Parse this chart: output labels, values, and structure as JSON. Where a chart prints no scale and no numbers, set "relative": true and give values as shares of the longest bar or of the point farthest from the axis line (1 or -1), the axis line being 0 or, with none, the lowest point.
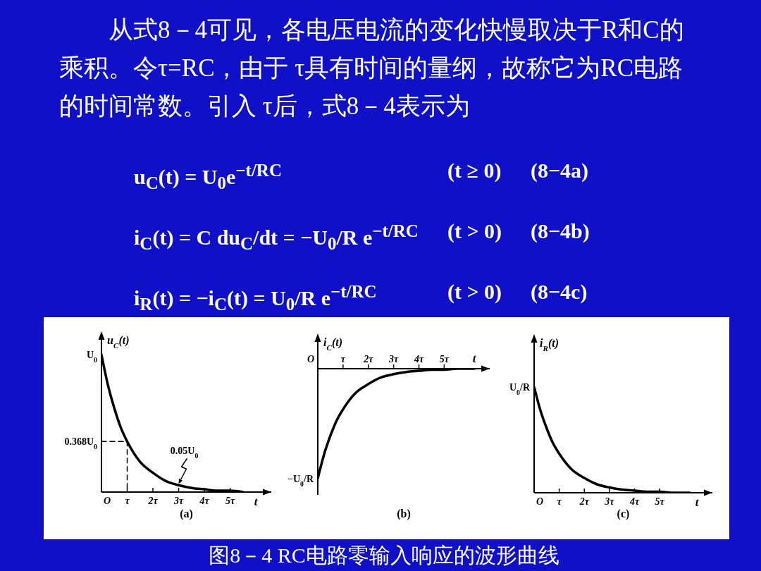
{
  "chart_data": [
    {
      "type": "other",
      "annotations": [
        "从式8－4可见，各电压电流的变化快慢取决于R和C的乘积。令τ=RC，由于 τ具有时间的量纲，故称它为RC电路的时间常数。引入 τ后，式8－4表示为",
        "u$_{C}$(t) = U$_{0}$e$^{−t/RC}$",
        "(t ≥ 0)",
        "(8−4a)",
        "i$_{C}$(t) = C du$_{C}$/dt = −U$_{0}$/R e$^{−t/RC}$",
        "(t > 0)",
        "(8−4b)",
        "i$_{R}$(t) = −i$_{C}$(t) = U$_{0}$/R e$^{−t/RC}$",
        "(t > 0)",
        "(8−4c)"
      ]
    },
    {
      "type": "line",
      "relative": true,
      "title": "(a)",
      "xlabel": "t",
      "ylabel": "u$_{C}$(t)",
      "xlim": [
        0,
        6.6
      ],
      "xticks": [
        {
          "value": 1,
          "label": "τ"
        },
        {
          "value": 2,
          "label": "2τ"
        },
        {
          "value": 3,
          "label": "3τ"
        },
        {
          "value": 4,
          "label": "4τ"
        },
        {
          "value": 5,
          "label": "5τ"
        }
      ],
      "series": [
        {
          "color": "#000000",
          "x": [
            0,
            0.25,
            0.5,
            0.75,
            1,
            1.5,
            2,
            2.5,
            3,
            3.5,
            4,
            4.5,
            5,
            5.5
          ],
          "values": [
            1,
            0.78,
            0.61,
            0.47,
            0.368,
            0.22,
            0.14,
            0.08,
            0.05,
            0.03,
            0.02,
            0.01,
            0.01,
            0
          ]
        },
        {
          "color": "#000000",
          "line_style": "dashed",
          "x": [
            0,
            1,
            1
          ],
          "values": [
            0.368,
            0.368,
            0
          ]
        }
      ],
      "annotations": [
        "O",
        "U$_{0}$",
        "0.368U$_{0}$",
        {
          "text": "0.05U$_{0}$",
          "x": 3,
          "y": 0.05
        }
      ]
    },
    {
      "type": "line",
      "relative": true,
      "title": "(b)",
      "xlabel": "t",
      "ylabel": "i$_{C}$(t)",
      "xlim": [
        0,
        6.8
      ],
      "xticks": [
        {
          "value": 1,
          "label": "τ"
        },
        {
          "value": 2,
          "label": "2τ"
        },
        {
          "value": 3,
          "label": "3τ"
        },
        {
          "value": 4,
          "label": "4τ"
        },
        {
          "value": 5,
          "label": "5τ"
        }
      ],
      "series": [
        {
          "color": "#000000",
          "x": [
            0,
            0.25,
            0.5,
            0.75,
            1,
            1.5,
            2,
            2.5,
            3,
            3.5,
            4,
            4.5,
            5,
            5.5,
            6.2
          ],
          "values": [
            -1,
            -0.78,
            -0.61,
            -0.47,
            -0.37,
            -0.22,
            -0.14,
            -0.08,
            -0.05,
            -0.03,
            -0.02,
            -0.01,
            -0.01,
            0,
            0
          ]
        }
      ],
      "annotations": [
        "O",
        "−U$_{0}$/R"
      ]
    },
    {
      "type": "line",
      "relative": true,
      "title": "(c)",
      "xlabel": "t",
      "ylabel": "i$_{R}$(t)",
      "xlim": [
        0,
        7.1
      ],
      "xticks": [
        {
          "value": 1,
          "label": "τ"
        },
        {
          "value": 2,
          "label": "2τ"
        },
        {
          "value": 3,
          "label": "3τ"
        },
        {
          "value": 4,
          "label": "4τ"
        },
        {
          "value": 5,
          "label": "5τ"
        }
      ],
      "series": [
        {
          "color": "#000000",
          "x": [
            0,
            0.25,
            0.5,
            0.75,
            1,
            1.5,
            2,
            2.5,
            3,
            3.5,
            4,
            4.5,
            5,
            5.5,
            6.2
          ],
          "values": [
            1,
            0.78,
            0.61,
            0.47,
            0.37,
            0.22,
            0.14,
            0.08,
            0.05,
            0.03,
            0.02,
            0.01,
            0.01,
            0,
            0
          ]
        }
      ],
      "annotations": [
        "O",
        "U$_{0}$/R"
      ]
    },
    {
      "type": "other",
      "annotations": [
        "图8－4 RC电路零输入响应的波形曲线"
      ]
    }
  ]
}
